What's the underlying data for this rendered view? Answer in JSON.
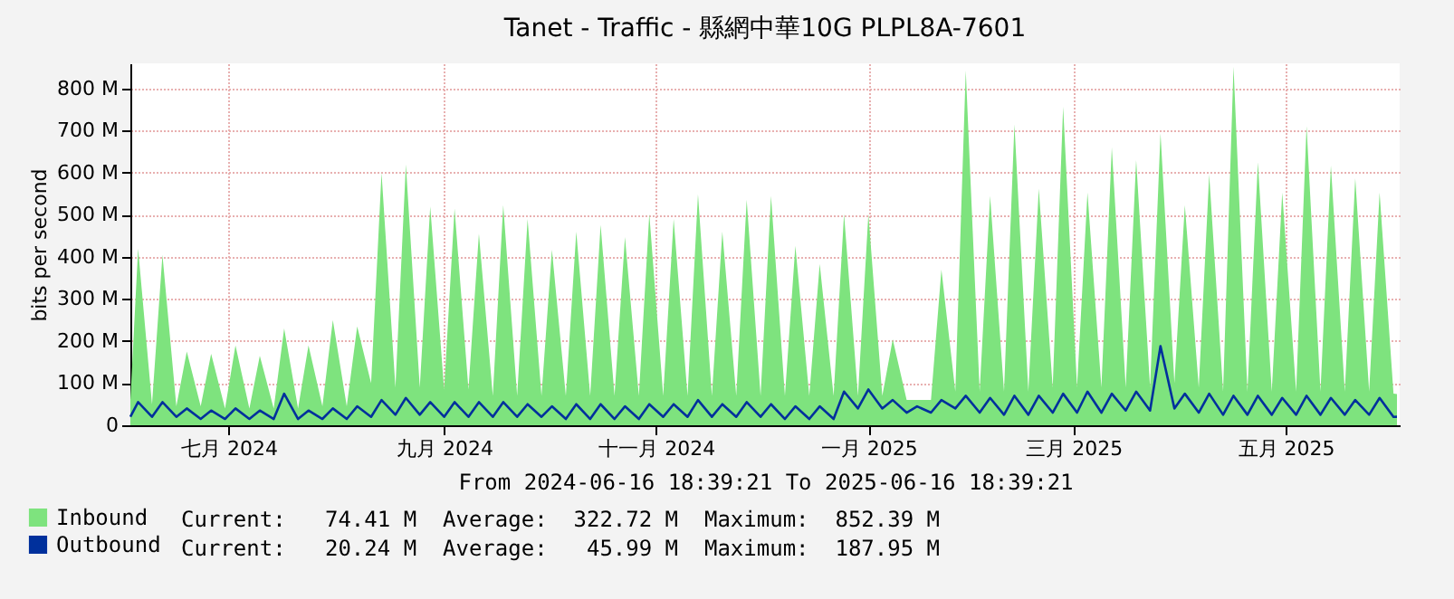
{
  "chart_data": {
    "type": "area",
    "title": "Tanet - Traffic - 縣網中華10G PLPL8A-7601",
    "xlabel": "From 2024-06-16 18:39:21 To 2025-06-16 18:39:21",
    "ylabel": "bits per second",
    "x": [
      "2024-06-16T18:39",
      "2024-06-19",
      "2024-06-23",
      "2024-06-26",
      "2024-06-30",
      "2024-07-03",
      "2024-07-07",
      "2024-07-10",
      "2024-07-14",
      "2024-07-17",
      "2024-07-21",
      "2024-07-24",
      "2024-07-28",
      "2024-07-31",
      "2024-08-04",
      "2024-08-07",
      "2024-08-11",
      "2024-08-14",
      "2024-08-18",
      "2024-08-21",
      "2024-08-25",
      "2024-08-28",
      "2024-09-01",
      "2024-09-04",
      "2024-09-08",
      "2024-09-11",
      "2024-09-15",
      "2024-09-18",
      "2024-09-22",
      "2024-09-25",
      "2024-09-29",
      "2024-10-02",
      "2024-10-06",
      "2024-10-09",
      "2024-10-13",
      "2024-10-16",
      "2024-10-20",
      "2024-10-23",
      "2024-10-27",
      "2024-10-30",
      "2024-11-03",
      "2024-11-06",
      "2024-11-10",
      "2024-11-13",
      "2024-11-17",
      "2024-11-20",
      "2024-11-24",
      "2024-11-27",
      "2024-12-01",
      "2024-12-04",
      "2024-12-08",
      "2024-12-11",
      "2024-12-15",
      "2024-12-18",
      "2024-12-22",
      "2024-12-25",
      "2024-12-29",
      "2025-01-01",
      "2025-01-05",
      "2025-01-08",
      "2025-01-12",
      "2025-01-15",
      "2025-01-19",
      "2025-01-22",
      "2025-01-26",
      "2025-01-29",
      "2025-02-02",
      "2025-02-05",
      "2025-02-09",
      "2025-02-12",
      "2025-02-16",
      "2025-02-19",
      "2025-02-23",
      "2025-02-26",
      "2025-03-02",
      "2025-03-05",
      "2025-03-09",
      "2025-03-12",
      "2025-03-16",
      "2025-03-19",
      "2025-03-23",
      "2025-03-26",
      "2025-03-30",
      "2025-04-02",
      "2025-04-06",
      "2025-04-09",
      "2025-04-13",
      "2025-04-16",
      "2025-04-20",
      "2025-04-23",
      "2025-04-27",
      "2025-04-30",
      "2025-05-04",
      "2025-05-07",
      "2025-05-11",
      "2025-05-14",
      "2025-05-18",
      "2025-05-21",
      "2025-05-25",
      "2025-05-28",
      "2025-06-01",
      "2025-06-04",
      "2025-06-08",
      "2025-06-11",
      "2025-06-15",
      "2025-06-16"
    ],
    "xlim": [
      "2024-06-16T18:39",
      "2025-06-16T18:39"
    ],
    "xticks": [
      {
        "value": "2024-07-15",
        "label": "七月 2024"
      },
      {
        "value": "2024-09-15",
        "label": "九月 2024"
      },
      {
        "value": "2024-11-15",
        "label": "十一月 2024"
      },
      {
        "value": "2025-01-15",
        "label": "一月 2025"
      },
      {
        "value": "2025-03-15",
        "label": "三月 2025"
      },
      {
        "value": "2025-05-15",
        "label": "五月 2025"
      }
    ],
    "ylim": [
      0,
      860
    ],
    "yticks": [
      0,
      {
        "value": 100,
        "label": "100 M"
      },
      {
        "value": 200,
        "label": "200 M"
      },
      {
        "value": 300,
        "label": "300 M"
      },
      {
        "value": 400,
        "label": "400 M"
      },
      {
        "value": 500,
        "label": "500 M"
      },
      {
        "value": 600,
        "label": "600 M"
      },
      {
        "value": 700,
        "label": "700 M"
      },
      {
        "value": 800,
        "label": "800 M"
      }
    ],
    "grid": true,
    "legend": "bottom left",
    "series": [
      {
        "name": "Inbound",
        "color": "#7ee37e",
        "values": [
          60,
          420,
          50,
          405,
          45,
          175,
          45,
          170,
          40,
          190,
          40,
          165,
          40,
          230,
          40,
          190,
          45,
          250,
          45,
          235,
          100,
          600,
          90,
          620,
          90,
          520,
          85,
          515,
          85,
          455,
          70,
          523,
          70,
          490,
          70,
          417,
          70,
          460,
          70,
          476,
          70,
          447,
          70,
          502,
          70,
          490,
          70,
          549,
          70,
          460,
          70,
          536,
          70,
          545,
          70,
          426,
          70,
          383,
          70,
          502,
          70,
          502,
          70,
          204,
          60,
          60,
          60,
          370,
          80,
          843,
          80,
          545,
          80,
          715,
          80,
          562,
          90,
          757,
          90,
          553,
          90,
          660,
          90,
          630,
          90,
          694,
          100,
          523,
          90,
          596,
          80,
          852,
          80,
          625,
          80,
          553,
          80,
          711,
          80,
          617,
          80,
          587,
          80,
          553,
          75,
          74.41
        ]
      },
      {
        "name": "Outbound",
        "type": "line",
        "color": "#00309c",
        "values": [
          20,
          55,
          20,
          55,
          20,
          40,
          15,
          35,
          15,
          40,
          15,
          35,
          15,
          75,
          15,
          35,
          15,
          40,
          15,
          45,
          20,
          60,
          25,
          65,
          25,
          55,
          20,
          55,
          20,
          55,
          20,
          55,
          20,
          50,
          20,
          45,
          15,
          50,
          15,
          50,
          15,
          45,
          15,
          50,
          20,
          50,
          20,
          60,
          20,
          50,
          20,
          55,
          20,
          50,
          15,
          45,
          15,
          45,
          15,
          80,
          40,
          85,
          40,
          60,
          30,
          45,
          30,
          60,
          40,
          70,
          30,
          65,
          25,
          70,
          25,
          70,
          30,
          75,
          30,
          80,
          30,
          75,
          35,
          80,
          35,
          188,
          40,
          75,
          30,
          75,
          25,
          70,
          25,
          70,
          25,
          65,
          25,
          70,
          25,
          65,
          25,
          60,
          25,
          65,
          20,
          20.24
        ]
      }
    ],
    "annotations": [
      "Current:   74.41 M  Average:  322.72 M  Maximum:  852.39 M",
      "Current:   20.24 M  Average:   45.99 M  Maximum:  187.95 M"
    ]
  }
}
